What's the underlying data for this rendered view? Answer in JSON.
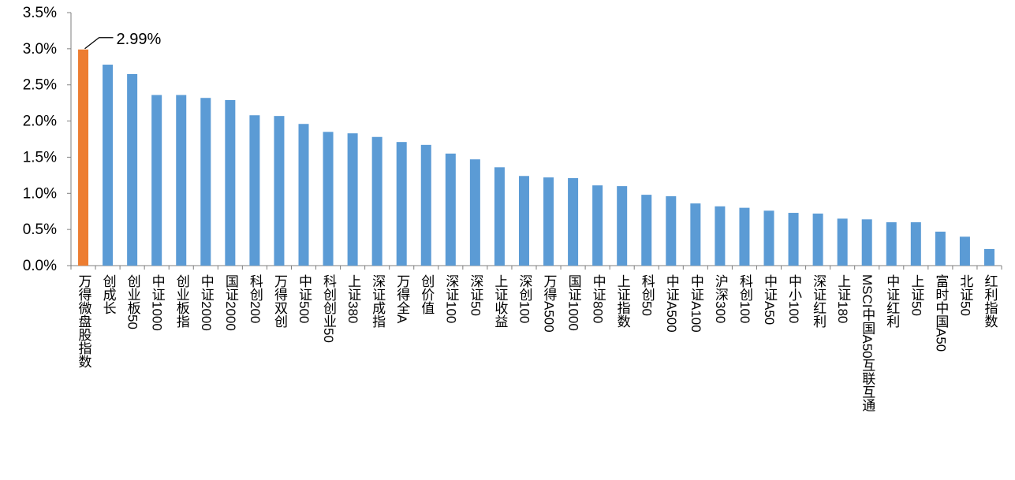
{
  "chart_data": {
    "type": "bar",
    "title": "",
    "xlabel": "",
    "ylabel": "",
    "ylim": [
      0,
      3.5
    ],
    "yticks": [
      "0.0%",
      "0.5%",
      "1.0%",
      "1.5%",
      "2.0%",
      "2.5%",
      "3.0%",
      "3.5%"
    ],
    "grid": false,
    "categories": [
      "万得微盘股指数",
      "创成长",
      "创业板50",
      "中证1000",
      "创业板指",
      "中证2000",
      "国证2000",
      "科创200",
      "万得双创",
      "中证500",
      "科创创业50",
      "上证380",
      "深证成指",
      "万得全A",
      "创价值",
      "深证100",
      "深证50",
      "上证收益",
      "深创100",
      "万得A500",
      "国证1000",
      "中证800",
      "上证指数",
      "科创50",
      "中证A500",
      "中证A100",
      "沪深300",
      "科创100",
      "中证A50",
      "中小100",
      "深证红利",
      "上证180",
      "MSCI中国A50互联互通",
      "中证红利",
      "上证50",
      "富时中国A50",
      "北证50",
      "红利指数"
    ],
    "values": [
      2.99,
      2.78,
      2.65,
      2.36,
      2.36,
      2.32,
      2.29,
      2.08,
      2.07,
      1.96,
      1.85,
      1.83,
      1.78,
      1.71,
      1.67,
      1.55,
      1.47,
      1.36,
      1.24,
      1.22,
      1.21,
      1.11,
      1.1,
      0.98,
      0.96,
      0.86,
      0.82,
      0.8,
      0.76,
      0.73,
      0.72,
      0.65,
      0.64,
      0.6,
      0.6,
      0.47,
      0.4,
      0.23
    ],
    "unit": "%",
    "highlight_index": 0,
    "annotation": "2.99%",
    "colors": {
      "bar": "#5B9BD5",
      "highlight": "#ED7D31",
      "axis": "#7f7f7f"
    }
  }
}
